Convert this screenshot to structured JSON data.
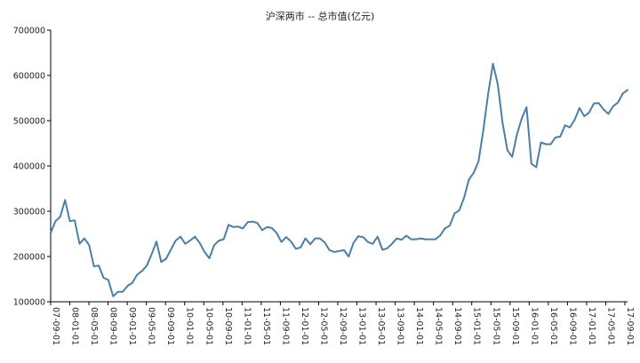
{
  "chart_data": {
    "type": "line",
    "title": "沪深两市 -- 总市值(亿元)",
    "xlabel": "",
    "ylabel": "",
    "ylim": [
      100000,
      700000
    ],
    "yticks": [
      100000,
      200000,
      300000,
      400000,
      500000,
      600000,
      700000
    ],
    "ytick_labels": [
      "100000",
      "200000",
      "300000",
      "400000",
      "500000",
      "600000",
      "700000"
    ],
    "xtick_labels": [
      "07-09-01",
      "08-01-01",
      "08-05-01",
      "08-09-01",
      "09-01-01",
      "09-05-01",
      "09-09-01",
      "10-01-01",
      "10-05-01",
      "10-09-01",
      "11-01-01",
      "11-05-01",
      "11-09-01",
      "12-01-01",
      "12-05-01",
      "12-09-01",
      "13-01-01",
      "13-05-01",
      "13-09-01",
      "14-01-01",
      "14-05-01",
      "14-09-01",
      "15-01-01",
      "15-05-01",
      "15-09-01",
      "16-01-01",
      "16-05-01",
      "16-09-01",
      "17-01-01",
      "17-05-01",
      "17-09-01"
    ],
    "grid": false,
    "legend": "none",
    "series": [
      {
        "color": "#4a7fa7",
        "values": [
          252000,
          278000,
          288000,
          325000,
          278000,
          280000,
          228000,
          240000,
          225000,
          178000,
          180000,
          153000,
          148000,
          112000,
          122000,
          122000,
          135000,
          142000,
          160000,
          168000,
          180000,
          205000,
          233000,
          188000,
          195000,
          215000,
          235000,
          244000,
          228000,
          235000,
          244000,
          230000,
          210000,
          196000,
          225000,
          235000,
          238000,
          270000,
          265000,
          266000,
          262000,
          276000,
          277000,
          274000,
          258000,
          265000,
          263000,
          252000,
          232000,
          243000,
          233000,
          217000,
          220000,
          240000,
          227000,
          240000,
          240000,
          231000,
          214000,
          210000,
          212000,
          214000,
          200000,
          230000,
          245000,
          243000,
          232000,
          228000,
          244000,
          215000,
          218000,
          228000,
          240000,
          237000,
          246000,
          238000,
          238000,
          240000,
          238000,
          238000,
          238000,
          246000,
          262000,
          268000,
          295000,
          302000,
          330000,
          370000,
          385000,
          410000,
          480000,
          560000,
          626000,
          580000,
          495000,
          435000,
          420000,
          470000,
          505000,
          530000,
          405000,
          397000,
          452000,
          448000,
          448000,
          463000,
          465000,
          490000,
          485000,
          502000,
          528000,
          510000,
          518000,
          538000,
          539000,
          525000,
          515000,
          532000,
          540000,
          560000,
          568000
        ]
      }
    ]
  }
}
